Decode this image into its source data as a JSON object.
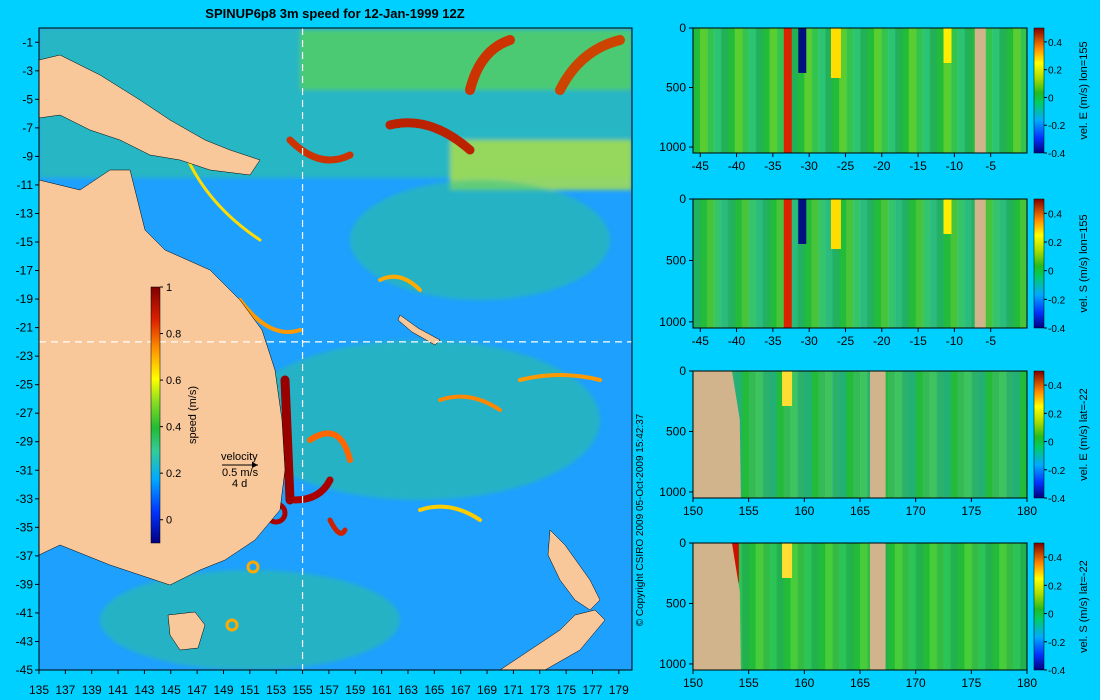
{
  "title": "SPINUP6p8 3m speed for 12-Jan-1999 12Z",
  "copyright": "© Copyright CSIRO 2009   05-Oct-2009 15:42:37",
  "colors": {
    "background": "#00d0ff",
    "land": "#f8c79a",
    "section_land": "#d2b48c"
  },
  "map": {
    "x_ticks": [
      "135",
      "137",
      "139",
      "141",
      "143",
      "145",
      "147",
      "149",
      "151",
      "153",
      "155",
      "157",
      "159",
      "161",
      "163",
      "165",
      "167",
      "169",
      "171",
      "173",
      "175",
      "177",
      "179"
    ],
    "y_ticks": [
      "-1",
      "-3",
      "-5",
      "-7",
      "-9",
      "-11",
      "-13",
      "-15",
      "-17",
      "-19",
      "-21",
      "-23",
      "-25",
      "-27",
      "-29",
      "-31",
      "-33",
      "-35",
      "-37",
      "-39",
      "-41",
      "-43",
      "-45"
    ],
    "section_lon": 155,
    "section_lat": -22,
    "velocity_legend": {
      "label": "velocity",
      "speed": "0.5 m/s",
      "days": "4 d"
    }
  },
  "speed_colorbar": {
    "label": "speed (m/s)",
    "ticks": [
      {
        "value": 1,
        "label": "1"
      },
      {
        "value": 0.8,
        "label": "0.8"
      },
      {
        "value": 0.6,
        "label": "0.6"
      },
      {
        "value": 0.4,
        "label": "0.4"
      },
      {
        "value": 0.2,
        "label": "0.2"
      },
      {
        "value": 0,
        "label": "0"
      }
    ],
    "range": [
      -0.1,
      1
    ]
  },
  "chart_data": [
    {
      "type": "heatmap",
      "title": "SPINUP6p8 3m speed for 12-Jan-1999 12Z",
      "xlabel": "",
      "ylabel": "",
      "xlim": [
        135,
        180
      ],
      "ylim": [
        -45,
        0
      ],
      "colorbar_label": "speed (m/s)",
      "color_range": [
        -0.1,
        1
      ]
    },
    {
      "type": "heatmap",
      "colorbar_label": "vel. E (m/s) lon=155",
      "x_ticks": [
        "-45",
        "-40",
        "-35",
        "-30",
        "-25",
        "-20",
        "-15",
        "-10",
        "-5"
      ],
      "y_ticks": [
        "0",
        "500",
        "1000"
      ],
      "xlim": [
        -46,
        0
      ],
      "ylim": [
        1050,
        0
      ],
      "color_range": [
        -0.4,
        0.5
      ],
      "color_ticks": [
        "0.4",
        "0.2",
        "0",
        "-0.2",
        "-0.4"
      ]
    },
    {
      "type": "heatmap",
      "colorbar_label": "vel. S (m/s) lon=155",
      "x_ticks": [
        "-45",
        "-40",
        "-35",
        "-30",
        "-25",
        "-20",
        "-15",
        "-10",
        "-5"
      ],
      "y_ticks": [
        "0",
        "500",
        "1000"
      ],
      "xlim": [
        -46,
        0
      ],
      "ylim": [
        1050,
        0
      ],
      "color_range": [
        -0.4,
        0.5
      ],
      "color_ticks": [
        "0.4",
        "0.2",
        "0",
        "-0.2",
        "-0.4"
      ]
    },
    {
      "type": "heatmap",
      "colorbar_label": "vel. E (m/s) lat=-22",
      "x_ticks": [
        "150",
        "155",
        "160",
        "165",
        "170",
        "175",
        "180"
      ],
      "y_ticks": [
        "0",
        "500",
        "1000"
      ],
      "xlim": [
        150,
        180
      ],
      "ylim": [
        1050,
        0
      ],
      "color_range": [
        -0.4,
        0.5
      ],
      "color_ticks": [
        "0.4",
        "0.2",
        "0",
        "-0.2",
        "-0.4"
      ]
    },
    {
      "type": "heatmap",
      "colorbar_label": "vel. S (m/s) lat=-22",
      "x_ticks": [
        "150",
        "155",
        "160",
        "165",
        "170",
        "175",
        "180"
      ],
      "y_ticks": [
        "0",
        "500",
        "1000"
      ],
      "xlim": [
        150,
        180
      ],
      "ylim": [
        1050,
        0
      ],
      "color_range": [
        -0.4,
        0.5
      ],
      "color_ticks": [
        "0.4",
        "0.2",
        "0",
        "-0.2",
        "-0.4"
      ]
    }
  ]
}
